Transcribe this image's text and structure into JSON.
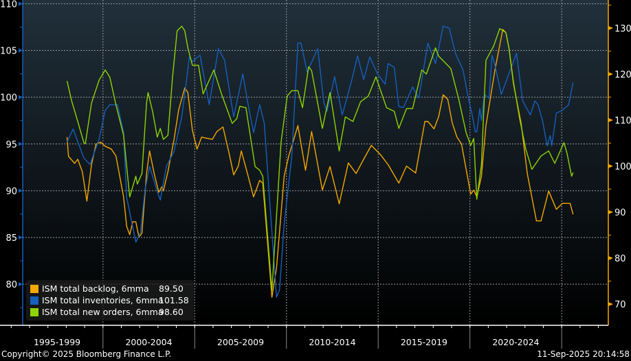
{
  "chart_data": {
    "type": "line",
    "title": "",
    "xlabel": "",
    "x_period_labels": [
      "1995-1999",
      "2000-2004",
      "2005-2009",
      "2010-2014",
      "2015-2019",
      "2020-2024"
    ],
    "xlim": [
      "1995-08",
      "2027-07"
    ],
    "left_axis": {
      "ticks": [
        80,
        85,
        90,
        95,
        100,
        105,
        110
      ],
      "ylim": [
        75.6,
        110.4
      ],
      "color": "#1560bd"
    },
    "right_axis": {
      "ticks": [
        70,
        80,
        90,
        100,
        110,
        120,
        130
      ],
      "ylim": [
        65.4,
        136.1
      ],
      "color": "#f5a800"
    },
    "grid": true,
    "legend_placement": "bottom-left",
    "background": {
      "top": "#21303b",
      "bottom": "#000000"
    },
    "series": [
      {
        "name": "ISM total backlog, 6mma",
        "last_value": "89.50",
        "color": "#f5a800",
        "axis": "right",
        "points": [
          [
            "1998-01",
            106.3
          ],
          [
            "1998-02",
            102.1
          ],
          [
            "1998-06",
            100.6
          ],
          [
            "1998-08",
            101.5
          ],
          [
            "1998-11",
            98.8
          ],
          [
            "1999-02",
            92.4
          ],
          [
            "1999-05",
            100.3
          ],
          [
            "1999-08",
            104.8
          ],
          [
            "1999-11",
            105.2
          ],
          [
            "2000-02",
            104.3
          ],
          [
            "2000-06",
            103.7
          ],
          [
            "2000-09",
            102.2
          ],
          [
            "2001-02",
            93.3
          ],
          [
            "2001-04",
            86.9
          ],
          [
            "2001-06",
            85.1
          ],
          [
            "2001-08",
            87.9
          ],
          [
            "2001-10",
            87.9
          ],
          [
            "2001-12",
            84.6
          ],
          [
            "2002-02",
            85.4
          ],
          [
            "2002-05",
            98.4
          ],
          [
            "2002-07",
            103.3
          ],
          [
            "2002-10",
            98.4
          ],
          [
            "2003-01",
            94.3
          ],
          [
            "2003-03",
            95.5
          ],
          [
            "2003-04",
            94.6
          ],
          [
            "2003-07",
            98.8
          ],
          [
            "2003-11",
            105.8
          ],
          [
            "2004-02",
            112.2
          ],
          [
            "2004-06",
            117.0
          ],
          [
            "2004-08",
            116.0
          ],
          [
            "2004-11",
            107.8
          ],
          [
            "2005-02",
            103.7
          ],
          [
            "2005-05",
            106.3
          ],
          [
            "2005-12",
            105.8
          ],
          [
            "2006-03",
            107.5
          ],
          [
            "2006-07",
            108.5
          ],
          [
            "2006-11",
            102.8
          ],
          [
            "2007-02",
            98.1
          ],
          [
            "2007-05",
            100.0
          ],
          [
            "2007-07",
            103.3
          ],
          [
            "2007-11",
            98.4
          ],
          [
            "2008-03",
            93.3
          ],
          [
            "2008-07",
            96.9
          ],
          [
            "2008-09",
            96.3
          ],
          [
            "2009-03",
            71.5
          ],
          [
            "2009-06",
            77.9
          ],
          [
            "2009-11",
            97.8
          ],
          [
            "2010-02",
            102.2
          ],
          [
            "2010-08",
            108.8
          ],
          [
            "2011-01",
            99.1
          ],
          [
            "2011-05",
            107.5
          ],
          [
            "2011-12",
            94.8
          ],
          [
            "2012-05",
            99.9
          ],
          [
            "2012-11",
            91.8
          ],
          [
            "2013-05",
            100.7
          ],
          [
            "2013-10",
            98.4
          ],
          [
            "2014-03",
            101.5
          ],
          [
            "2014-08",
            104.5
          ],
          [
            "2015-02",
            102.5
          ],
          [
            "2015-07",
            100.3
          ],
          [
            "2016-02",
            96.3
          ],
          [
            "2016-07",
            100.0
          ],
          [
            "2017-01",
            98.5
          ],
          [
            "2017-07",
            109.7
          ],
          [
            "2017-09",
            109.7
          ],
          [
            "2018-01",
            108.1
          ],
          [
            "2018-04",
            110.7
          ],
          [
            "2018-07",
            115.5
          ],
          [
            "2018-10",
            114.5
          ],
          [
            "2019-01",
            109.3
          ],
          [
            "2019-04",
            106.3
          ],
          [
            "2019-07",
            104.8
          ],
          [
            "2020-01",
            93.9
          ],
          [
            "2020-03",
            94.8
          ],
          [
            "2020-05",
            93.3
          ],
          [
            "2020-08",
            97.8
          ],
          [
            "2020-11",
            108.8
          ],
          [
            "2021-05",
            121.2
          ],
          [
            "2021-10",
            129.7
          ],
          [
            "2021-12",
            129.0
          ],
          [
            "2022-02",
            125.7
          ],
          [
            "2022-05",
            117.8
          ],
          [
            "2022-10",
            109.3
          ],
          [
            "2023-02",
            98.4
          ],
          [
            "2023-08",
            88.1
          ],
          [
            "2023-11",
            88.1
          ],
          [
            "2024-04",
            94.6
          ],
          [
            "2024-09",
            90.6
          ],
          [
            "2025-01",
            91.9
          ],
          [
            "2025-06",
            91.9
          ],
          [
            "2025-08",
            89.5
          ]
        ]
      },
      {
        "name": "ISM total inventories, 6mma",
        "last_value": "101.58",
        "color": "#1560bd",
        "axis": "left",
        "points": [
          [
            "1998-01",
            95.2
          ],
          [
            "1998-05",
            96.6
          ],
          [
            "1998-12",
            93.5
          ],
          [
            "1999-04",
            92.8
          ],
          [
            "1999-10",
            95.5
          ],
          [
            "2000-02",
            98.6
          ],
          [
            "2000-05",
            99.2
          ],
          [
            "2000-10",
            99.2
          ],
          [
            "2001-02",
            96.2
          ],
          [
            "2001-04",
            89.3
          ],
          [
            "2001-10",
            84.5
          ],
          [
            "2002-01",
            85.5
          ],
          [
            "2002-04",
            90.1
          ],
          [
            "2002-07",
            92.6
          ],
          [
            "2002-12",
            89.9
          ],
          [
            "2003-02",
            89.0
          ],
          [
            "2003-06",
            92.6
          ],
          [
            "2003-11",
            94.2
          ],
          [
            "2004-04",
            97.9
          ],
          [
            "2004-07",
            101.6
          ],
          [
            "2004-09",
            104.3
          ],
          [
            "2004-11",
            103.8
          ],
          [
            "2005-04",
            104.5
          ],
          [
            "2005-10",
            99.2
          ],
          [
            "2006-04",
            105.2
          ],
          [
            "2006-08",
            104.0
          ],
          [
            "2007-02",
            97.9
          ],
          [
            "2007-08",
            102.5
          ],
          [
            "2007-11",
            99.6
          ],
          [
            "2008-03",
            96.2
          ],
          [
            "2008-07",
            99.2
          ],
          [
            "2008-10",
            97.2
          ],
          [
            "2009-02",
            87.9
          ],
          [
            "2009-06",
            78.6
          ],
          [
            "2009-08",
            79.4
          ],
          [
            "2009-11",
            86.4
          ],
          [
            "2010-04",
            93.7
          ],
          [
            "2010-08",
            105.8
          ],
          [
            "2010-10",
            105.8
          ],
          [
            "2011-02",
            102.7
          ],
          [
            "2011-09",
            105.2
          ],
          [
            "2012-01",
            99.4
          ],
          [
            "2012-03",
            98.5
          ],
          [
            "2012-08",
            102.2
          ],
          [
            "2013-01",
            98.1
          ],
          [
            "2013-07",
            101.7
          ],
          [
            "2013-11",
            104.4
          ],
          [
            "2014-03",
            101.9
          ],
          [
            "2014-07",
            104.3
          ],
          [
            "2014-12",
            102.5
          ],
          [
            "2015-05",
            101.4
          ],
          [
            "2015-07",
            103.6
          ],
          [
            "2015-11",
            103.2
          ],
          [
            "2016-02",
            99.0
          ],
          [
            "2016-05",
            98.9
          ],
          [
            "2016-11",
            101.1
          ],
          [
            "2017-03",
            99.9
          ],
          [
            "2017-09",
            105.8
          ],
          [
            "2018-02",
            103.6
          ],
          [
            "2018-07",
            107.6
          ],
          [
            "2018-11",
            107.4
          ],
          [
            "2019-03",
            104.7
          ],
          [
            "2019-08",
            102.9
          ],
          [
            "2019-11",
            100.3
          ],
          [
            "2020-02",
            98.1
          ],
          [
            "2020-04",
            96.3
          ],
          [
            "2020-05",
            96.3
          ],
          [
            "2020-07",
            98.8
          ],
          [
            "2020-08",
            97.5
          ],
          [
            "2020-10",
            100.3
          ],
          [
            "2021-01",
            99.9
          ],
          [
            "2021-03",
            104.5
          ],
          [
            "2021-05",
            103.3
          ],
          [
            "2021-09",
            100.3
          ],
          [
            "2022-02",
            102.5
          ],
          [
            "2022-07",
            104.7
          ],
          [
            "2022-11",
            99.6
          ],
          [
            "2023-04",
            98.1
          ],
          [
            "2023-07",
            99.6
          ],
          [
            "2023-09",
            99.2
          ],
          [
            "2023-12",
            97.5
          ],
          [
            "2024-03",
            94.8
          ],
          [
            "2024-05",
            95.9
          ],
          [
            "2024-06",
            94.8
          ],
          [
            "2024-09",
            98.3
          ],
          [
            "2025-01",
            98.6
          ],
          [
            "2025-05",
            99.2
          ],
          [
            "2025-08",
            101.58
          ]
        ]
      },
      {
        "name": "ISM total new orders, 6mma",
        "last_value": "98.60",
        "color": "#8fd400",
        "axis": "right",
        "points": [
          [
            "1998-01",
            118.5
          ],
          [
            "1998-04",
            114.2
          ],
          [
            "1998-08",
            109.7
          ],
          [
            "1998-12",
            105.1
          ],
          [
            "1999-01",
            104.9
          ],
          [
            "1999-05",
            113.7
          ],
          [
            "1999-10",
            118.7
          ],
          [
            "2000-02",
            120.9
          ],
          [
            "2000-05",
            119.3
          ],
          [
            "2000-09",
            113.3
          ],
          [
            "2001-02",
            106.7
          ],
          [
            "2001-06",
            93.3
          ],
          [
            "2001-10",
            97.8
          ],
          [
            "2001-11",
            96.1
          ],
          [
            "2002-02",
            98.4
          ],
          [
            "2002-05",
            113.7
          ],
          [
            "2002-06",
            116.0
          ],
          [
            "2002-09",
            111.8
          ],
          [
            "2002-12",
            106.3
          ],
          [
            "2003-02",
            108.2
          ],
          [
            "2003-04",
            105.8
          ],
          [
            "2003-07",
            106.7
          ],
          [
            "2003-10",
            119.3
          ],
          [
            "2004-01",
            129.4
          ],
          [
            "2004-04",
            130.4
          ],
          [
            "2004-06",
            129.4
          ],
          [
            "2004-08",
            125.7
          ],
          [
            "2004-11",
            121.9
          ],
          [
            "2005-03",
            121.9
          ],
          [
            "2005-06",
            115.7
          ],
          [
            "2006-01",
            120.9
          ],
          [
            "2006-06",
            115.7
          ],
          [
            "2007-01",
            109.3
          ],
          [
            "2007-04",
            110.3
          ],
          [
            "2007-06",
            113.0
          ],
          [
            "2007-10",
            112.7
          ],
          [
            "2008-04",
            99.9
          ],
          [
            "2008-07",
            99.1
          ],
          [
            "2008-09",
            97.8
          ],
          [
            "2009-03",
            73.0
          ],
          [
            "2009-09",
            105.2
          ],
          [
            "2010-01",
            115.2
          ],
          [
            "2010-04",
            116.4
          ],
          [
            "2010-08",
            116.4
          ],
          [
            "2010-11",
            112.7
          ],
          [
            "2011-03",
            121.6
          ],
          [
            "2011-05",
            120.7
          ],
          [
            "2011-12",
            108.2
          ],
          [
            "2012-05",
            116.0
          ],
          [
            "2012-11",
            103.3
          ],
          [
            "2013-03",
            110.7
          ],
          [
            "2013-08",
            109.7
          ],
          [
            "2014-01",
            114.0
          ],
          [
            "2014-06",
            115.2
          ],
          [
            "2014-11",
            119.4
          ],
          [
            "2015-06",
            112.7
          ],
          [
            "2015-11",
            111.9
          ],
          [
            "2016-02",
            108.2
          ],
          [
            "2016-07",
            112.5
          ],
          [
            "2016-11",
            112.5
          ],
          [
            "2017-05",
            120.9
          ],
          [
            "2017-08",
            120.0
          ],
          [
            "2018-02",
            125.7
          ],
          [
            "2018-04",
            123.9
          ],
          [
            "2018-12",
            121.2
          ],
          [
            "2019-05",
            114.8
          ],
          [
            "2019-10",
            107.3
          ],
          [
            "2020-01",
            104.5
          ],
          [
            "2020-03",
            106.0
          ],
          [
            "2020-05",
            92.8
          ],
          [
            "2020-08",
            100.3
          ],
          [
            "2020-11",
            123.0
          ],
          [
            "2021-04",
            126.1
          ],
          [
            "2021-08",
            129.9
          ],
          [
            "2021-12",
            129.0
          ],
          [
            "2022-02",
            125.7
          ],
          [
            "2022-05",
            118.2
          ],
          [
            "2022-09",
            110.3
          ],
          [
            "2023-01",
            103.7
          ],
          [
            "2023-05",
            99.3
          ],
          [
            "2023-11",
            102.2
          ],
          [
            "2024-04",
            103.3
          ],
          [
            "2024-08",
            100.6
          ],
          [
            "2025-02",
            105.1
          ],
          [
            "2025-04",
            102.8
          ],
          [
            "2025-07",
            97.8
          ],
          [
            "2025-08",
            98.6
          ]
        ]
      }
    ]
  },
  "footer": {
    "copyright": "Copyright© 2025 Bloomberg Finance L.P.",
    "timestamp": "11-Sep-2025 20:14:58"
  }
}
